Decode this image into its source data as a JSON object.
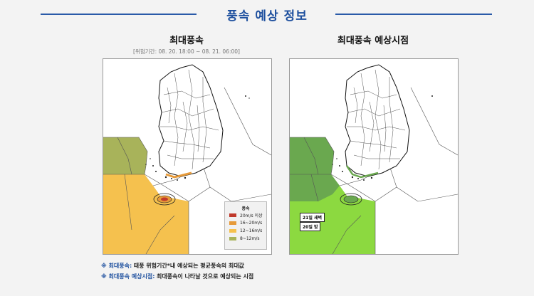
{
  "page": {
    "title": "풍속 예상 정보"
  },
  "left_panel": {
    "title": "최대풍속",
    "subtitle": "[위험기간: 08. 20. 18:00 ~ 08. 21. 06:00]",
    "legend": {
      "title": "풍속",
      "items": [
        {
          "label": "20m/s 이상",
          "color": "#c0392b"
        },
        {
          "label": "16~20m/s",
          "color": "#e69a3a"
        },
        {
          "label": "12~16m/s",
          "color": "#f5c14e"
        },
        {
          "label": "8~12m/s",
          "color": "#a8b35a"
        }
      ]
    }
  },
  "right_panel": {
    "title": "최대풍속 예상시점",
    "tags": {
      "t1": "21일 새벽",
      "t2": "20일 밤"
    },
    "colors": {
      "dark_green": "#6aa84f",
      "light_green": "#8cd940"
    }
  },
  "notes": {
    "n1_key": "※ 최대풍속:",
    "n1_text": "태풍 위험기간*내 예상되는 평균풍속의 최대값",
    "n2_key": "※ 최대풍속 예상시점:",
    "n2_text": "최대풍속이 나타날 것으로 예상되는 시점"
  }
}
